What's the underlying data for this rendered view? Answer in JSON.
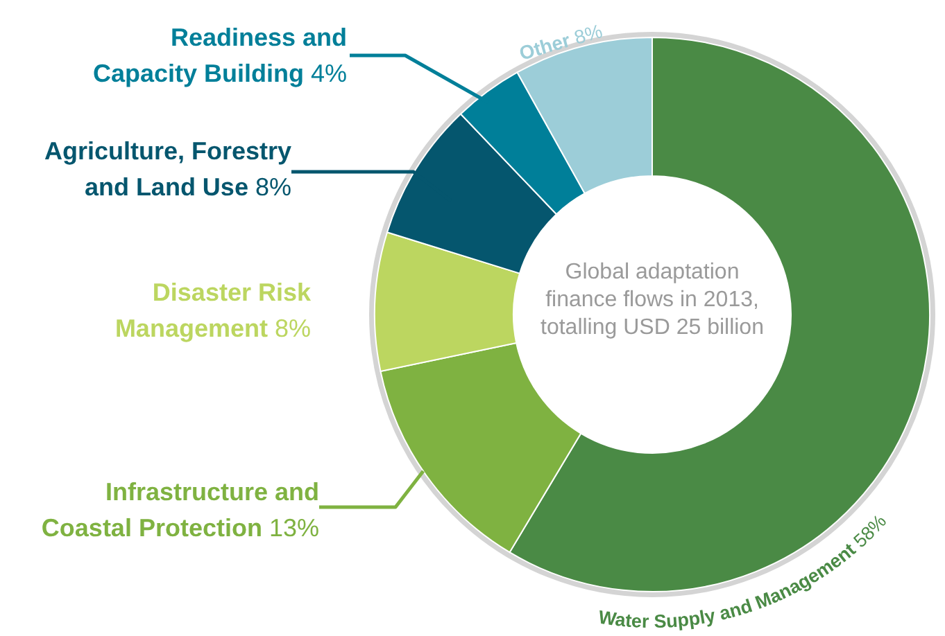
{
  "chart_data": {
    "type": "donut",
    "title": "Global adaptation finance flows in 2013, totalling USD 25 billion",
    "categories": [
      "Water Supply and Management",
      "Infrastructure and Coastal Protection",
      "Disaster Risk Management",
      "Agriculture, Forestry and Land Use",
      "Readiness and Capacity Building",
      "Other"
    ],
    "values": [
      58,
      13,
      8,
      8,
      4,
      8
    ],
    "value_labels": [
      "58%",
      "13%",
      "8%",
      "8%",
      "4%",
      "8%"
    ],
    "colors": [
      "#4a8a45",
      "#7fb241",
      "#bcd660",
      "#05566e",
      "#007f99",
      "#9ccdd8"
    ]
  }
}
